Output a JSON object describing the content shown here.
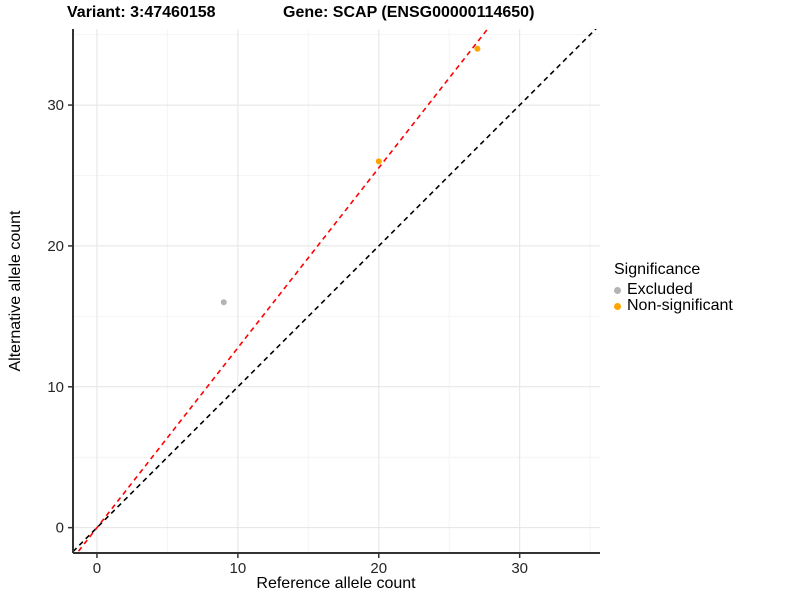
{
  "titles": {
    "variant": "Variant: 3:47460158",
    "gene": "Gene: SCAP (ENSG00000114650)"
  },
  "chart_data": {
    "type": "scatter",
    "xlabel": "Reference allele count",
    "ylabel": "Alternative allele count",
    "xlim": [
      -1.7,
      35.7
    ],
    "ylim": [
      -1.8,
      35.4
    ],
    "x_major_ticks": [
      0,
      10,
      20,
      30
    ],
    "y_major_ticks": [
      0,
      10,
      20,
      30
    ],
    "x_minor_ticks": [
      5,
      15,
      25,
      35
    ],
    "y_minor_ticks": [
      5,
      15,
      25,
      35
    ],
    "grid": true,
    "legend_position": "right",
    "points": [
      {
        "x": 9,
        "y": 16,
        "significance": "Excluded"
      },
      {
        "x": 20,
        "y": 26,
        "significance": "Non-significant"
      },
      {
        "x": 27,
        "y": 34,
        "significance": "Non-significant"
      }
    ],
    "lines": [
      {
        "name": "identity-line",
        "slope": 1.0,
        "intercept": 0,
        "color": "#000000",
        "style": "dashed"
      },
      {
        "name": "fitted-line",
        "slope": 1.277,
        "intercept": 0,
        "color": "#FF0000",
        "style": "dashed"
      }
    ],
    "legend": {
      "title": "Significance",
      "items": [
        {
          "label": "Excluded",
          "color": "#B3B3B3"
        },
        {
          "label": "Non-significant",
          "color": "#FFA500"
        }
      ]
    }
  },
  "colors": {
    "background": "#FFFFFF",
    "grid_major": "#E4E4E4",
    "grid_minor": "#F4F4F4",
    "axis_line": "#333333",
    "tick_text": "#262626"
  }
}
